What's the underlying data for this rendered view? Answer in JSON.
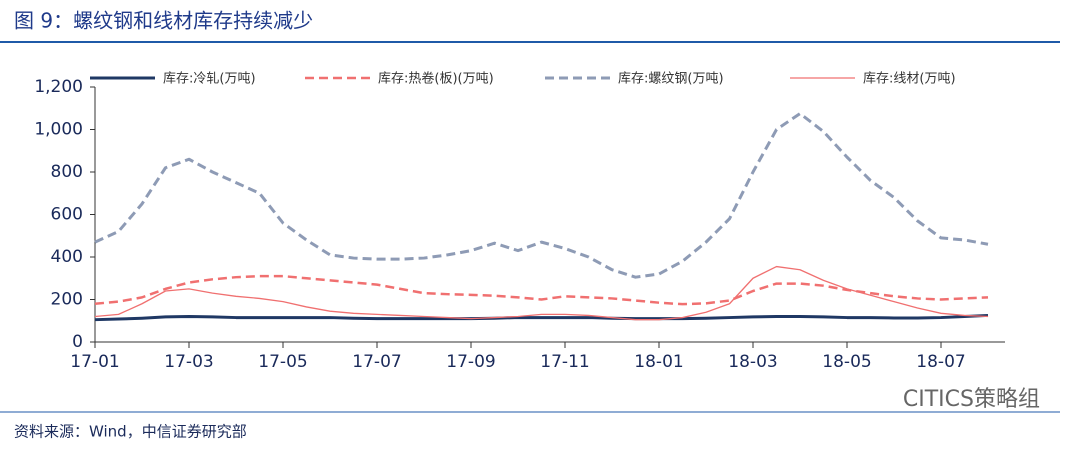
{
  "chart_data": {
    "type": "line",
    "title": "图 9：螺纹钢和线材库存持续减少",
    "source": "资料来源：Wind，中信证券研究部",
    "watermark": "CITICS策略组",
    "categories": [
      "17-01",
      null,
      null,
      null,
      "17-03",
      null,
      null,
      null,
      "17-05",
      null,
      null,
      null,
      "17-07",
      null,
      null,
      null,
      "17-09",
      null,
      null,
      null,
      "17-11",
      null,
      null,
      null,
      "18-01",
      null,
      null,
      null,
      "18-03",
      null,
      null,
      null,
      "18-05",
      null,
      null,
      null,
      "18-07",
      null,
      null
    ],
    "series": [
      {
        "name": "库存:冷轧(万吨)",
        "color": "#1f3864",
        "style": "solid",
        "linewidth": 3,
        "values": [
          105,
          108,
          112,
          118,
          120,
          118,
          115,
          115,
          115,
          115,
          115,
          112,
          110,
          110,
          110,
          110,
          110,
          112,
          115,
          115,
          115,
          115,
          112,
          110,
          110,
          110,
          112,
          115,
          118,
          120,
          120,
          118,
          115,
          115,
          113,
          113,
          115,
          120,
          125
        ]
      },
      {
        "name": "库存:热卷(板)(万吨)",
        "color": "#f07070",
        "style": "dashed",
        "linewidth": 2.5,
        "values": [
          180,
          190,
          210,
          250,
          280,
          295,
          305,
          310,
          310,
          300,
          290,
          280,
          270,
          250,
          230,
          225,
          222,
          218,
          210,
          200,
          215,
          210,
          205,
          195,
          185,
          178,
          182,
          195,
          240,
          275,
          275,
          265,
          245,
          230,
          215,
          205,
          200,
          205,
          210
        ]
      },
      {
        "name": "库存:螺纹钢(万吨)",
        "color": "#8e9bb5",
        "style": "dashed",
        "linewidth": 3,
        "values": [
          470,
          520,
          650,
          820,
          860,
          800,
          750,
          700,
          560,
          480,
          410,
          395,
          390,
          390,
          395,
          410,
          430,
          465,
          430,
          470,
          440,
          400,
          340,
          305,
          320,
          380,
          470,
          580,
          800,
          1000,
          1075,
          990,
          870,
          760,
          680,
          570,
          490,
          480,
          460
        ]
      },
      {
        "name": "库存:线材(万吨)",
        "color": "#f07070",
        "style": "solid",
        "linewidth": 1.3,
        "values": [
          120,
          130,
          180,
          240,
          250,
          230,
          215,
          205,
          190,
          165,
          145,
          135,
          130,
          125,
          120,
          115,
          110,
          115,
          120,
          130,
          130,
          125,
          115,
          105,
          105,
          115,
          140,
          180,
          300,
          355,
          340,
          290,
          250,
          220,
          190,
          160,
          135,
          125,
          120
        ]
      }
    ],
    "ylim": [
      0,
      1200
    ],
    "yticks": [
      0,
      200,
      400,
      600,
      800,
      {
        "value": 1000,
        "label": "1,000"
      },
      {
        "value": 1200,
        "label": "1,200"
      }
    ],
    "grid": false
  }
}
